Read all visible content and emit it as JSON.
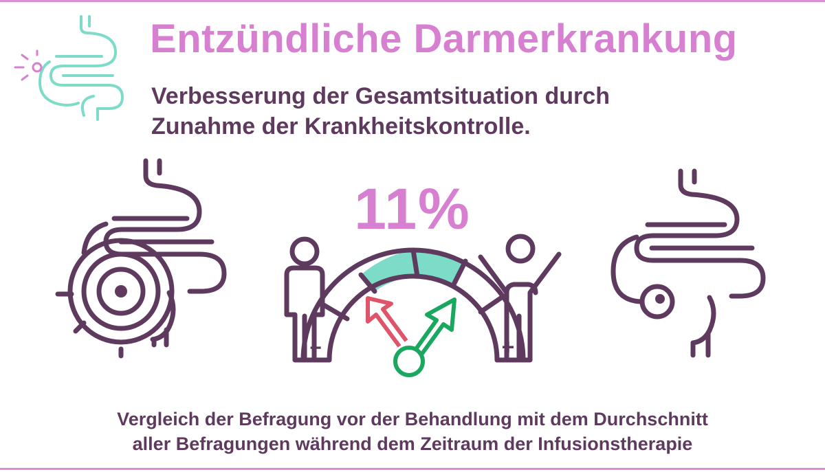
{
  "title": "Entzündliche Darmerkrankung",
  "subtitle": {
    "line1": "Verbesserung der Gesamtsituation durch",
    "line2": "Zunahme der Krankheitskontrolle."
  },
  "improvement_percent": "11%",
  "footnote": {
    "line1": "Vergleich der Befragung vor der Behandlung mit dem Durchschnitt",
    "line2": "aller Befragungen während dem Zeitraum der Infusionstherapie"
  },
  "gauge": {
    "minus_symbol": "−",
    "plus_symbol": "+"
  },
  "colors": {
    "title_pink": "#d77fd0",
    "dark_purple": "#5e3a5e",
    "mint": "#7ddcc8",
    "red_arrow": "#e0546a",
    "green_arrow": "#1aa860",
    "border": "#d98fd2"
  },
  "icons": {
    "header": "intestine-inflammation-icon",
    "left": "intestine-target-pain-icon",
    "center": "satisfaction-gauge-icon",
    "right": "intestine-healing-icon"
  }
}
